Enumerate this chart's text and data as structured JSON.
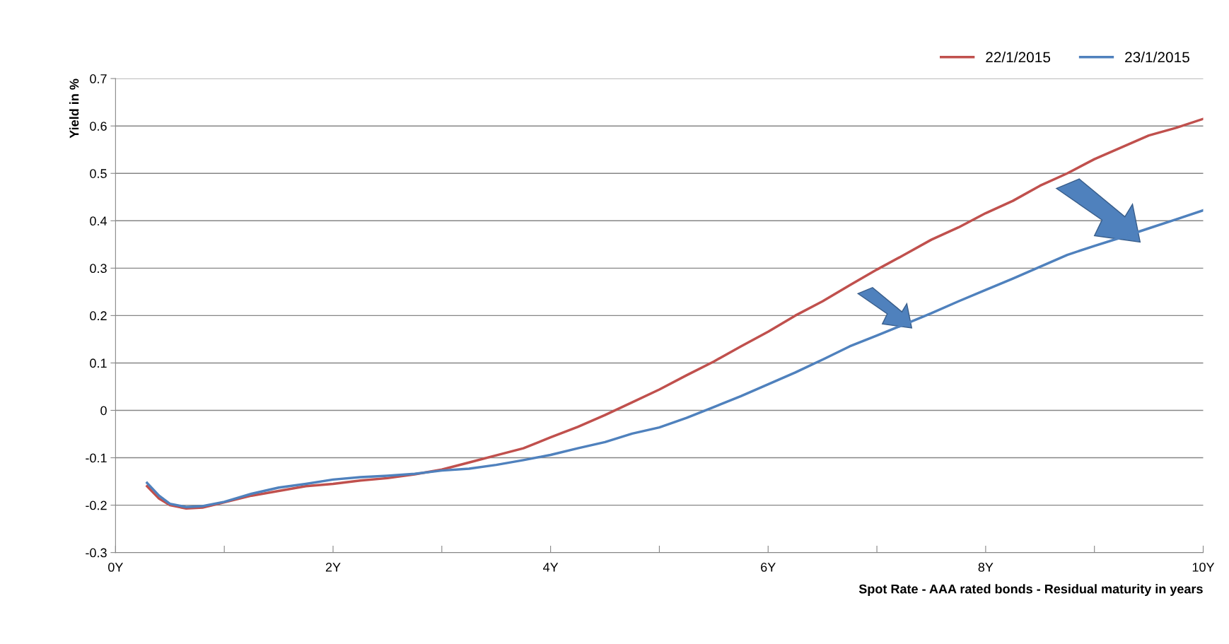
{
  "chart_data": {
    "type": "line",
    "xlabel": "Spot Rate - AAA rated bonds - Residual maturity in years",
    "ylabel": "Yield in %",
    "xlim": [
      0,
      10
    ],
    "xticks": [
      {
        "value": 0,
        "label": "0Y"
      },
      {
        "value": 1,
        "label": null
      },
      {
        "value": 2,
        "label": "2Y"
      },
      {
        "value": 3,
        "label": null
      },
      {
        "value": 4,
        "label": "4Y"
      },
      {
        "value": 5,
        "label": null
      },
      {
        "value": 6,
        "label": "6Y"
      },
      {
        "value": 7,
        "label": null
      },
      {
        "value": 8,
        "label": "8Y"
      },
      {
        "value": 9,
        "label": null
      },
      {
        "value": 10,
        "label": "10Y"
      }
    ],
    "ylim": [
      -0.3,
      0.7
    ],
    "yticks": [
      -0.3,
      -0.2,
      -0.1,
      0,
      0.1,
      0.2,
      0.3,
      0.4,
      0.5,
      0.6,
      0.7
    ],
    "grid": "y",
    "legend": "top right",
    "marker": "none",
    "line_style": "solid",
    "x": [
      0.29,
      0.4,
      0.5,
      0.65,
      0.8,
      1.0,
      1.25,
      1.5,
      1.75,
      2.0,
      2.25,
      2.5,
      2.75,
      3.0,
      3.25,
      3.5,
      3.75,
      4.0,
      4.25,
      4.5,
      4.75,
      5.0,
      5.25,
      5.5,
      5.75,
      6.0,
      6.25,
      6.5,
      6.75,
      7.0,
      7.25,
      7.5,
      7.75,
      8.0,
      8.25,
      8.5,
      8.75,
      9.0,
      9.25,
      9.5,
      9.75,
      10.0
    ],
    "series": [
      {
        "name": "22/1/2015",
        "color": "#c0504d",
        "values": [
          -0.16,
          -0.186,
          -0.2,
          -0.207,
          -0.205,
          -0.194,
          -0.18,
          -0.17,
          -0.16,
          -0.155,
          -0.148,
          -0.143,
          -0.135,
          -0.125,
          -0.11,
          -0.095,
          -0.08,
          -0.057,
          -0.035,
          -0.01,
          0.017,
          0.044,
          0.074,
          0.103,
          0.135,
          0.166,
          0.2,
          0.23,
          0.264,
          0.297,
          0.328,
          0.36,
          0.386,
          0.416,
          0.442,
          0.474,
          0.5,
          0.53,
          0.555,
          0.58,
          0.596,
          0.615
        ]
      },
      {
        "name": "23/1/2015",
        "color": "#4f81bd",
        "values": [
          -0.153,
          -0.18,
          -0.197,
          -0.204,
          -0.202,
          -0.193,
          -0.176,
          -0.163,
          -0.155,
          -0.146,
          -0.141,
          -0.138,
          -0.134,
          -0.127,
          -0.123,
          -0.115,
          -0.105,
          -0.094,
          -0.08,
          -0.067,
          -0.049,
          -0.036,
          -0.016,
          0.007,
          0.03,
          0.055,
          0.08,
          0.107,
          0.135,
          0.158,
          0.181,
          0.205,
          0.23,
          0.254,
          0.278,
          0.303,
          0.328,
          0.347,
          0.365,
          0.384,
          0.403,
          0.422
        ]
      }
    ]
  }
}
